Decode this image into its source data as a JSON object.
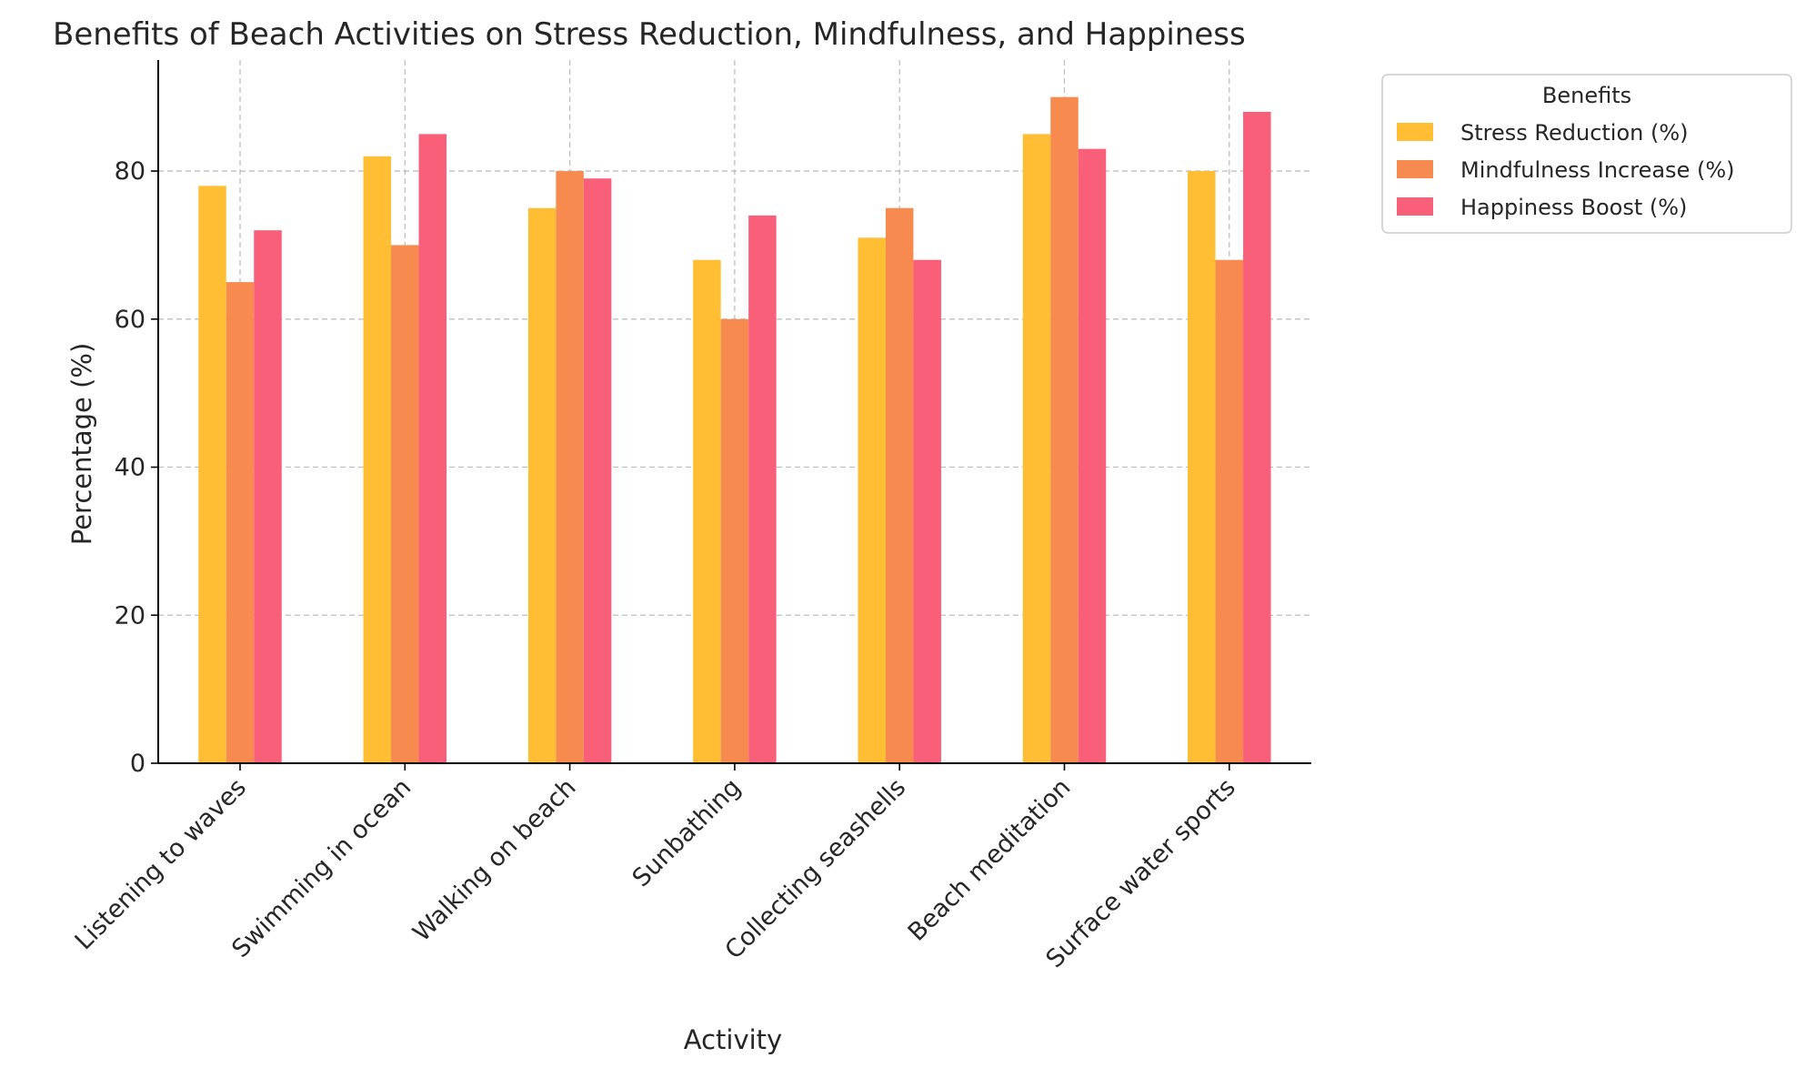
{
  "chart_data": {
    "type": "bar",
    "title": "Benefits of Beach Activities on Stress Reduction, Mindfulness, and Happiness",
    "xlabel": "Activity",
    "ylabel": "Percentage (%)",
    "ylim": [
      0,
      95
    ],
    "yticks": [
      0,
      20,
      40,
      60,
      80
    ],
    "grid": true,
    "categories": [
      "Listening to waves",
      "Swimming in ocean",
      "Walking on beach",
      "Sunbathing",
      "Collecting seashells",
      "Beach meditation",
      "Surface water sports"
    ],
    "legend": {
      "title": "Benefits",
      "placement": "outside-top-right"
    },
    "series": [
      {
        "name": "Stress Reduction (%)",
        "color": "#FFBE33",
        "values": [
          78,
          82,
          75,
          68,
          71,
          85,
          80
        ]
      },
      {
        "name": "Mindfulness Increase (%)",
        "color": "#F78B4F",
        "values": [
          65,
          70,
          80,
          60,
          75,
          90,
          68
        ]
      },
      {
        "name": "Happiness Boost (%)",
        "color": "#FA5F7A",
        "values": [
          72,
          85,
          79,
          74,
          68,
          83,
          88
        ]
      }
    ]
  }
}
